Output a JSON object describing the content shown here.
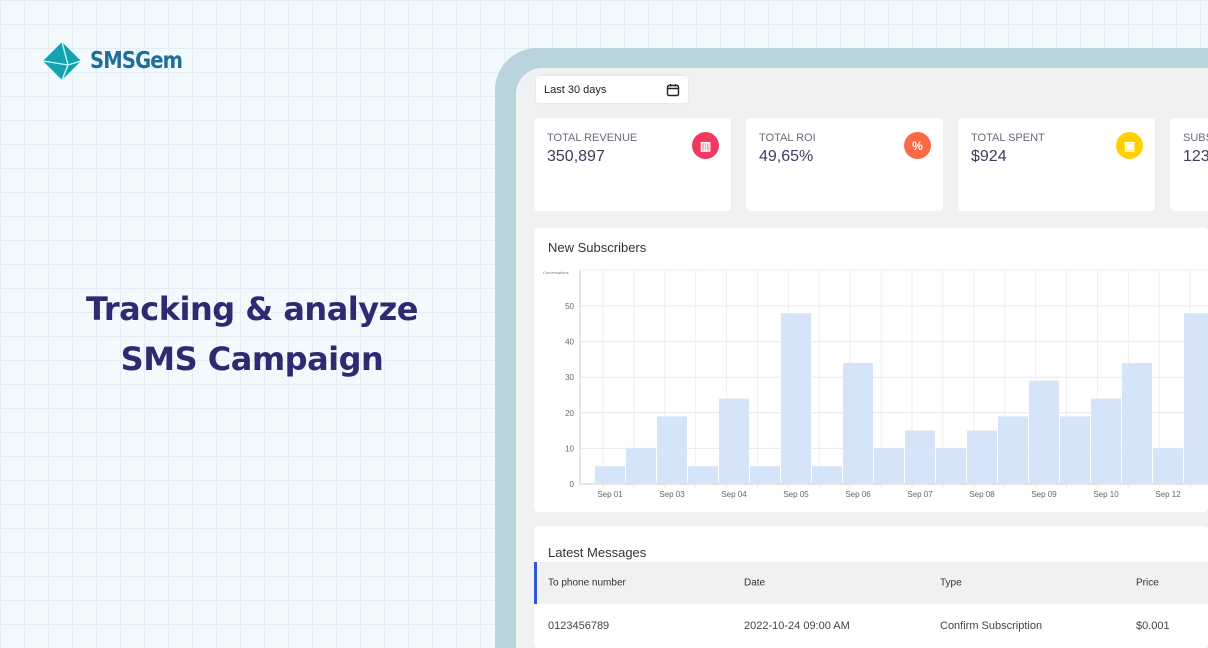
{
  "brand": {
    "name": "SMSGem",
    "color": "#1f6f9c"
  },
  "headline": {
    "line1": "Tracking & analyze",
    "line2": "SMS Campaign"
  },
  "dashboard": {
    "date_range": "Last 30 days",
    "stats": [
      {
        "label": "TOTAL REVENUE",
        "value": "350,897",
        "icon": "chart-icon",
        "color": "#f0395e",
        "glyph": "▥"
      },
      {
        "label": "TOTAL ROI",
        "value": "49,65%",
        "icon": "percent-icon",
        "color": "#fa6a45",
        "glyph": "%"
      },
      {
        "label": "TOTAL SPENT",
        "value": "$924",
        "icon": "money-icon",
        "color": "#ffd100",
        "glyph": "▣"
      },
      {
        "label": "SUBS",
        "value": "123",
        "icon": "",
        "color": "",
        "glyph": ""
      }
    ],
    "chart_title": "New Subscribers",
    "latest_title": "Latest Messages",
    "table": {
      "headers": [
        "To phone number",
        "Date",
        "Type",
        "Price"
      ],
      "rows": [
        [
          "0123456789",
          "2022-10-24 09:00 AM",
          "Confirm Subscription",
          "$0.001"
        ]
      ]
    }
  },
  "chart_data": {
    "type": "bar",
    "ylabel": "Conversations",
    "ylim": [
      0,
      55
    ],
    "yticks": [
      0,
      10,
      20,
      30,
      40,
      50
    ],
    "grid": true,
    "tick_labels": [
      "Sep 01",
      "Sep 03",
      "Sep 04",
      "Sep 05",
      "Sep 06",
      "Sep 07",
      "Sep 08",
      "Sep 09",
      "Sep 10",
      "Sep 12"
    ],
    "values": [
      5,
      10,
      19,
      5,
      24,
      5,
      48,
      5,
      34,
      10,
      15,
      10,
      15,
      19,
      29,
      19,
      24,
      34,
      10,
      48
    ],
    "bar_color": "#d6e4f9"
  }
}
